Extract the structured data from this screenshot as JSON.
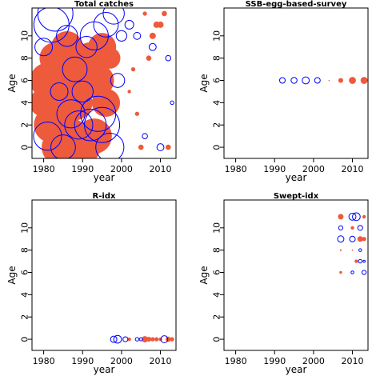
{
  "colors": {
    "positive": "#EE5A3C",
    "negative": "#0000FF",
    "frame": "#000000"
  },
  "chart_data": [
    {
      "type": "scatter",
      "title": "Total catches",
      "xlabel": "year",
      "ylabel": "Age",
      "xlim": [
        1977,
        2014
      ],
      "ylim": [
        -1,
        12.5
      ],
      "xticks": [
        1980,
        1990,
        2000,
        2010
      ],
      "yticks": [
        0,
        2,
        4,
        6,
        8,
        10
      ],
      "negative_points": [
        {
          "x": 1980,
          "y": 9,
          "s": 0.5
        },
        {
          "x": 1981,
          "y": 1,
          "s": 0.8
        },
        {
          "x": 1982,
          "y": 11,
          "s": 1.0
        },
        {
          "x": 1983,
          "y": 12,
          "s": 1.0
        },
        {
          "x": 1984,
          "y": 5,
          "s": 0.5
        },
        {
          "x": 1985,
          "y": 0,
          "s": 0.7
        },
        {
          "x": 1986,
          "y": 10,
          "s": 0.6
        },
        {
          "x": 1987,
          "y": 3,
          "s": 0.8
        },
        {
          "x": 1988,
          "y": 7,
          "s": 0.7
        },
        {
          "x": 1989,
          "y": 2,
          "s": 0.8
        },
        {
          "x": 1990,
          "y": 5,
          "s": 0.6
        },
        {
          "x": 1991,
          "y": 9,
          "s": 0.6
        },
        {
          "x": 1992,
          "y": 2,
          "s": 0.9
        },
        {
          "x": 1993,
          "y": 10,
          "s": 0.8
        },
        {
          "x": 1994,
          "y": 3,
          "s": 1.0
        },
        {
          "x": 1995,
          "y": 2,
          "s": 1.0
        },
        {
          "x": 1996,
          "y": 11,
          "s": 0.7
        },
        {
          "x": 1997,
          "y": 0,
          "s": 0.8
        },
        {
          "x": 1998,
          "y": 12,
          "s": 0.6
        },
        {
          "x": 1999,
          "y": 6,
          "s": 0.4
        },
        {
          "x": 2000,
          "y": 10,
          "s": 0.3
        },
        {
          "x": 2002,
          "y": 11,
          "s": 0.25
        },
        {
          "x": 2004,
          "y": 10,
          "s": 0.2
        },
        {
          "x": 2006,
          "y": 1,
          "s": 0.15
        },
        {
          "x": 2008,
          "y": 9,
          "s": 0.2
        },
        {
          "x": 2010,
          "y": 0,
          "s": 0.2
        },
        {
          "x": 2012,
          "y": 8,
          "s": 0.15
        },
        {
          "x": 2013,
          "y": 4,
          "s": 0.1
        }
      ],
      "positive_points": [
        {
          "x": 1980,
          "y": 4,
          "s": 0.8
        },
        {
          "x": 1981,
          "y": 6,
          "s": 1.0
        },
        {
          "x": 1982,
          "y": 2,
          "s": 1.0
        },
        {
          "x": 1983,
          "y": 8,
          "s": 0.9
        },
        {
          "x": 1984,
          "y": 0,
          "s": 1.0
        },
        {
          "x": 1985,
          "y": 5,
          "s": 1.0
        },
        {
          "x": 1986,
          "y": 9,
          "s": 0.9
        },
        {
          "x": 1987,
          "y": 1,
          "s": 1.0
        },
        {
          "x": 1988,
          "y": 4,
          "s": 1.0
        },
        {
          "x": 1989,
          "y": 7,
          "s": 0.9
        },
        {
          "x": 1990,
          "y": 0,
          "s": 1.0
        },
        {
          "x": 1991,
          "y": 6,
          "s": 1.0
        },
        {
          "x": 1992,
          "y": 8,
          "s": 0.9
        },
        {
          "x": 1993,
          "y": 1,
          "s": 1.0
        },
        {
          "x": 1994,
          "y": 6,
          "s": 0.9
        },
        {
          "x": 1995,
          "y": 9,
          "s": 0.8
        },
        {
          "x": 1996,
          "y": 4,
          "s": 0.8
        },
        {
          "x": 1997,
          "y": 8,
          "s": 0.6
        },
        {
          "x": 2002,
          "y": 5,
          "s": 0.1
        },
        {
          "x": 2003,
          "y": 7,
          "s": 0.12
        },
        {
          "x": 2004,
          "y": 3,
          "s": 0.12
        },
        {
          "x": 2005,
          "y": 0,
          "s": 0.15
        },
        {
          "x": 2006,
          "y": 12,
          "s": 0.12
        },
        {
          "x": 2007,
          "y": 8,
          "s": 0.15
        },
        {
          "x": 2008,
          "y": 10,
          "s": 0.18
        },
        {
          "x": 2009,
          "y": 11,
          "s": 0.18
        },
        {
          "x": 2010,
          "y": 11,
          "s": 0.18
        },
        {
          "x": 2011,
          "y": 12,
          "s": 0.15
        },
        {
          "x": 2012,
          "y": 0,
          "s": 0.15
        }
      ]
    },
    {
      "type": "scatter",
      "title": "SSB-egg-based-survey",
      "xlabel": "year",
      "ylabel": "Age",
      "xlim": [
        1977,
        2014
      ],
      "ylim": [
        -1,
        12.5
      ],
      "xticks": [
        1980,
        1990,
        2000,
        2010
      ],
      "yticks": [
        0,
        2,
        4,
        6,
        8,
        10
      ],
      "negative_points": [
        {
          "x": 1992,
          "y": 6,
          "s": 0.16
        },
        {
          "x": 1995,
          "y": 6,
          "s": 0.17
        },
        {
          "x": 1998,
          "y": 6,
          "s": 0.2
        },
        {
          "x": 2001,
          "y": 6,
          "s": 0.16
        }
      ],
      "positive_points": [
        {
          "x": 2004,
          "y": 6,
          "s": 0.03
        },
        {
          "x": 2007,
          "y": 6,
          "s": 0.14
        },
        {
          "x": 2010,
          "y": 6,
          "s": 0.2
        },
        {
          "x": 2013,
          "y": 6,
          "s": 0.2
        }
      ]
    },
    {
      "type": "scatter",
      "title": "R-idx",
      "xlabel": "year",
      "ylabel": "Age",
      "xlim": [
        1977,
        2014
      ],
      "ylim": [
        -1,
        12.5
      ],
      "xticks": [
        1980,
        1990,
        2000,
        2010
      ],
      "yticks": [
        0,
        2,
        4,
        6,
        8,
        10
      ],
      "negative_points": [
        {
          "x": 1998,
          "y": 0,
          "s": 0.18
        },
        {
          "x": 1999,
          "y": 0,
          "s": 0.22
        },
        {
          "x": 2001,
          "y": 0,
          "s": 0.14
        },
        {
          "x": 2004,
          "y": 0,
          "s": 0.1
        },
        {
          "x": 2005,
          "y": 0,
          "s": 0.09
        },
        {
          "x": 2011,
          "y": 0,
          "s": 0.2
        }
      ],
      "positive_points": [
        {
          "x": 2002,
          "y": 0,
          "s": 0.1
        },
        {
          "x": 2006,
          "y": 0,
          "s": 0.18
        },
        {
          "x": 2007,
          "y": 0,
          "s": 0.14
        },
        {
          "x": 2008,
          "y": 0,
          "s": 0.12
        },
        {
          "x": 2009,
          "y": 0,
          "s": 0.12
        },
        {
          "x": 2010,
          "y": 0,
          "s": 0.1
        },
        {
          "x": 2012,
          "y": 0,
          "s": 0.15
        },
        {
          "x": 2013,
          "y": 0,
          "s": 0.12
        }
      ]
    },
    {
      "type": "scatter",
      "title": "Swept-idx",
      "xlabel": "year",
      "ylabel": "Age",
      "xlim": [
        1977,
        2014
      ],
      "ylim": [
        -1,
        12.5
      ],
      "xticks": [
        1980,
        1990,
        2000,
        2010
      ],
      "yticks": [
        0,
        2,
        4,
        6,
        8,
        10
      ],
      "negative_points": [
        {
          "x": 2007,
          "y": 10,
          "s": 0.12
        },
        {
          "x": 2007,
          "y": 9,
          "s": 0.18
        },
        {
          "x": 2010,
          "y": 11,
          "s": 0.2
        },
        {
          "x": 2011,
          "y": 11,
          "s": 0.22
        },
        {
          "x": 2010,
          "y": 9,
          "s": 0.16
        },
        {
          "x": 2012,
          "y": 8,
          "s": 0.08
        },
        {
          "x": 2012,
          "y": 7,
          "s": 0.1
        },
        {
          "x": 2013,
          "y": 7,
          "s": 0.06
        },
        {
          "x": 2010,
          "y": 6,
          "s": 0.08
        },
        {
          "x": 2013,
          "y": 6,
          "s": 0.12
        },
        {
          "x": 2012,
          "y": 10,
          "s": 0.14
        }
      ],
      "positive_points": [
        {
          "x": 2007,
          "y": 11,
          "s": 0.16
        },
        {
          "x": 2007,
          "y": 8,
          "s": 0.05
        },
        {
          "x": 2007,
          "y": 6,
          "s": 0.08
        },
        {
          "x": 2010,
          "y": 10,
          "s": 0.1
        },
        {
          "x": 2012,
          "y": 9,
          "s": 0.16
        },
        {
          "x": 2013,
          "y": 11,
          "s": 0.1
        },
        {
          "x": 2011,
          "y": 7,
          "s": 0.1
        },
        {
          "x": 2013,
          "y": 9,
          "s": 0.12
        },
        {
          "x": 2010,
          "y": 8,
          "s": 0.04
        }
      ]
    }
  ]
}
